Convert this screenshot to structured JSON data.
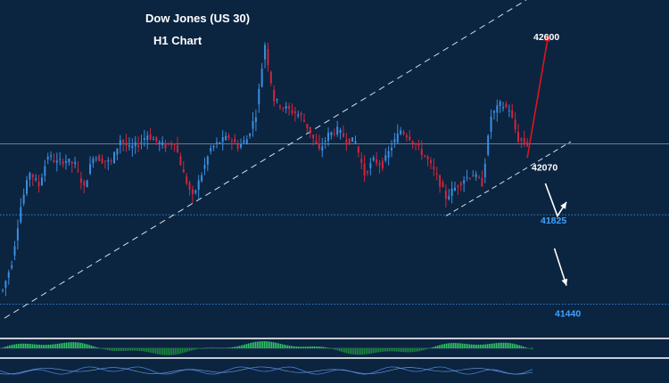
{
  "chart_data": {
    "type": "candlestick",
    "title": "Dow Jones (US 30)",
    "subtitle": "H1 Chart",
    "ylim": [
      41300,
      42750
    ],
    "levels": [
      {
        "label": "42600",
        "value": 42600,
        "color": "#ffffff",
        "line": false
      },
      {
        "label": "42070",
        "value": 42070,
        "color": "#ffffff",
        "line": false
      },
      {
        "label": "41825",
        "value": 41825,
        "color": "#3fa3ff",
        "line": true
      },
      {
        "label": "41440",
        "value": 41440,
        "color": "#3fa3ff",
        "line": true
      }
    ],
    "horizontal_line_value": 42130,
    "path_points": [
      [
        0,
        41500
      ],
      [
        3,
        41620
      ],
      [
        6,
        41860
      ],
      [
        9,
        42010
      ],
      [
        12,
        41950
      ],
      [
        15,
        42080
      ],
      [
        18,
        42050
      ],
      [
        21,
        42060
      ],
      [
        24,
        42040
      ],
      [
        27,
        41940
      ],
      [
        30,
        42080
      ],
      [
        33,
        42060
      ],
      [
        36,
        42050
      ],
      [
        39,
        42150
      ],
      [
        42,
        42110
      ],
      [
        45,
        42130
      ],
      [
        48,
        42170
      ],
      [
        51,
        42140
      ],
      [
        54,
        42120
      ],
      [
        57,
        42140
      ],
      [
        60,
        42000
      ],
      [
        63,
        41900
      ],
      [
        66,
        42000
      ],
      [
        69,
        42110
      ],
      [
        72,
        42140
      ],
      [
        75,
        42160
      ],
      [
        78,
        42120
      ],
      [
        81,
        42150
      ],
      [
        84,
        42260
      ],
      [
        87,
        42560
      ],
      [
        90,
        42320
      ],
      [
        93,
        42290
      ],
      [
        96,
        42270
      ],
      [
        99,
        42250
      ],
      [
        102,
        42180
      ],
      [
        105,
        42100
      ],
      [
        108,
        42170
      ],
      [
        111,
        42190
      ],
      [
        114,
        42150
      ],
      [
        117,
        42140
      ],
      [
        120,
        42000
      ],
      [
        123,
        42060
      ],
      [
        126,
        42040
      ],
      [
        129,
        42120
      ],
      [
        132,
        42190
      ],
      [
        135,
        42160
      ],
      [
        138,
        42110
      ],
      [
        141,
        42060
      ],
      [
        144,
        41990
      ],
      [
        147,
        41900
      ],
      [
        150,
        41940
      ],
      [
        153,
        41980
      ],
      [
        156,
        42000
      ],
      [
        159,
        41960
      ],
      [
        162,
        42250
      ],
      [
        165,
        42300
      ],
      [
        168,
        42280
      ],
      [
        171,
        42150
      ],
      [
        174,
        42130
      ]
    ],
    "forecast_arrows": [
      {
        "name": "up",
        "color": "#e0141e",
        "from": [
          174,
          42070
        ],
        "to": [
          181,
          42600
        ]
      },
      {
        "name": "zig",
        "color": "#ffffff",
        "points": [
          [
            180,
            41960
          ],
          [
            184,
            41820
          ],
          [
            187,
            41880
          ]
        ]
      },
      {
        "name": "down",
        "color": "#ffffff",
        "from": [
          183,
          41680
        ],
        "to": [
          187,
          41520
        ]
      }
    ]
  }
}
